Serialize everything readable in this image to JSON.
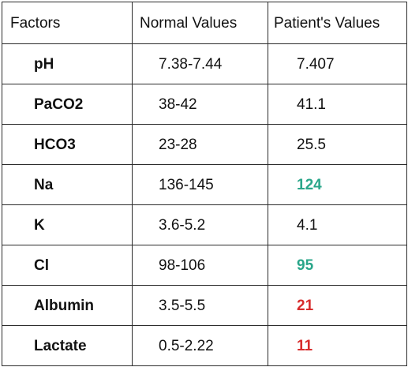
{
  "table": {
    "headers": [
      "Factors",
      "Normal Values",
      "Patient's Values"
    ],
    "rows": [
      {
        "factor": "pH",
        "normal": "7.38-7.44",
        "patient": "7.407",
        "flag": "none"
      },
      {
        "factor": "PaCO2",
        "normal": "38-42",
        "patient": "41.1",
        "flag": "none"
      },
      {
        "factor": "HCO3",
        "normal": "23-28",
        "patient": "25.5",
        "flag": "none"
      },
      {
        "factor": "Na",
        "normal": "136-145",
        "patient": "124",
        "flag": "low"
      },
      {
        "factor": "K",
        "normal": "3.6-5.2",
        "patient": "4.1",
        "flag": "none"
      },
      {
        "factor": "Cl",
        "normal": "98-106",
        "patient": "95",
        "flag": "low"
      },
      {
        "factor": "Albumin",
        "normal": "3.5-5.5",
        "patient": "21",
        "flag": "high"
      },
      {
        "factor": "Lactate",
        "normal": "0.5-2.22",
        "patient": "11",
        "flag": "high"
      }
    ]
  },
  "colors": {
    "border": "#2b2b2b",
    "text": "#111111",
    "flag_low": "#2aa68a",
    "flag_high": "#d82c2c"
  }
}
